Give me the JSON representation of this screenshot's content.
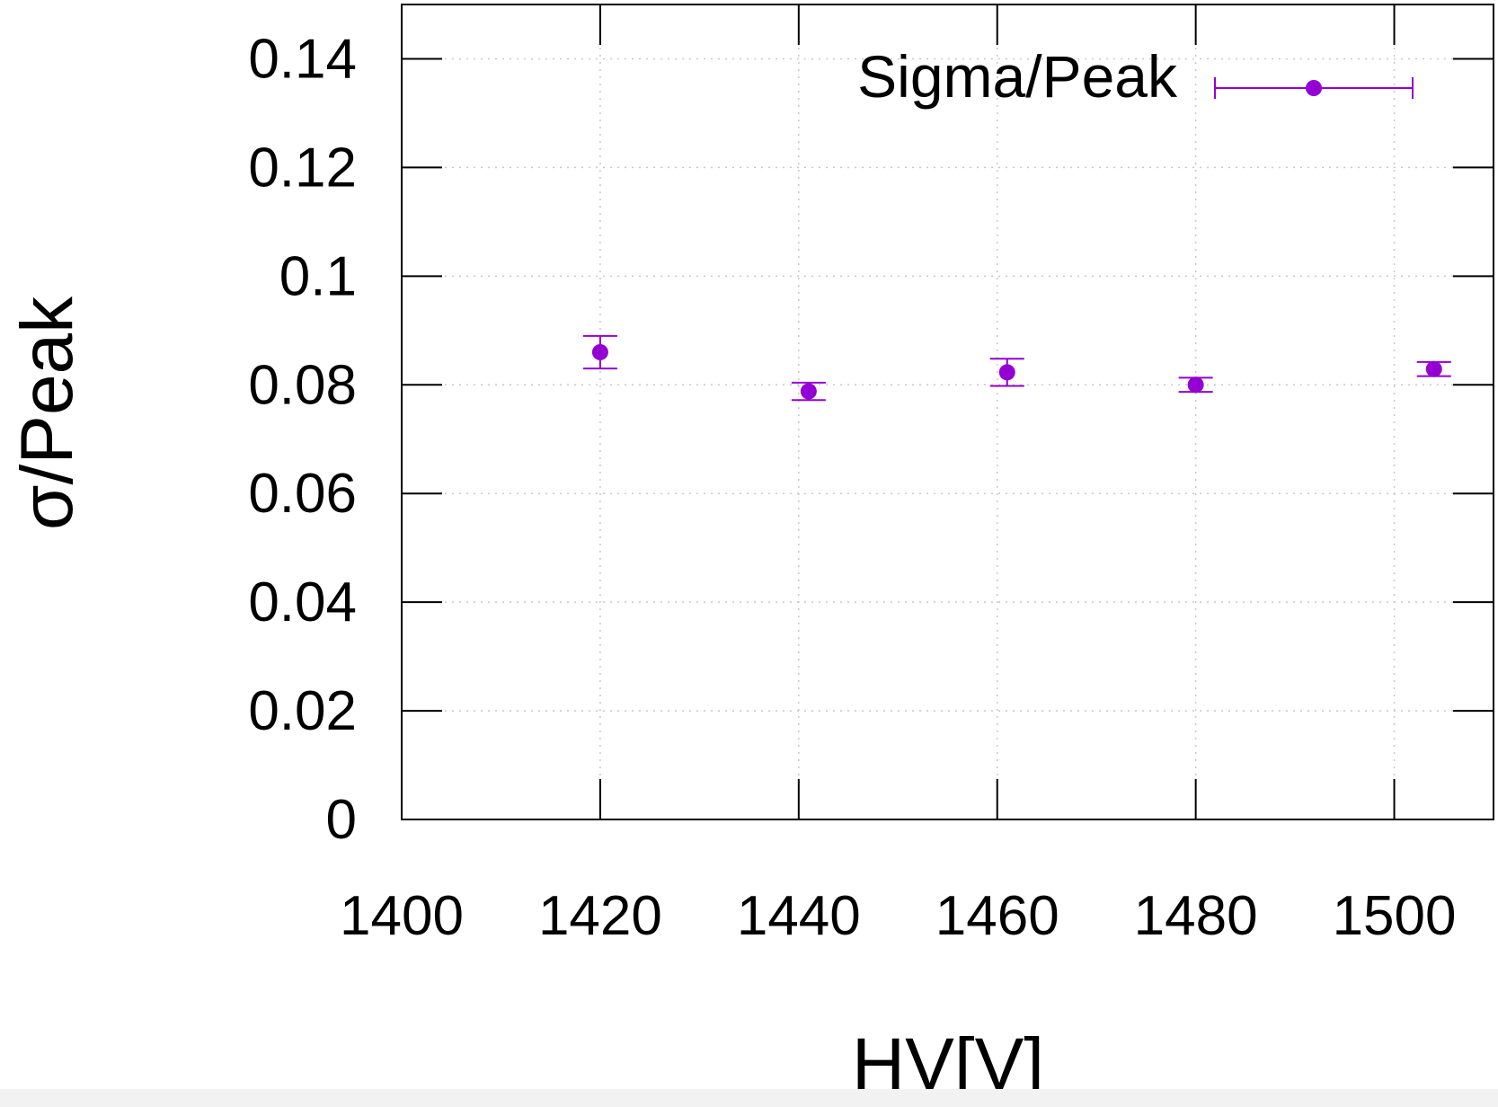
{
  "chart_data": {
    "type": "scatter",
    "title": "",
    "xlabel": "HV[V]",
    "ylabel": "σ/Peak",
    "xlim": [
      1400,
      1510
    ],
    "ylim": [
      0,
      0.15
    ],
    "x_ticks": [
      1400,
      1420,
      1440,
      1460,
      1480,
      1500
    ],
    "x_tick_labels": [
      "1400",
      "1420",
      "1440",
      "1460",
      "1480",
      "1500"
    ],
    "y_ticks": [
      0,
      0.02,
      0.04,
      0.06,
      0.08,
      0.1,
      0.12,
      0.14
    ],
    "y_tick_labels": [
      "0",
      "0.02",
      "0.04",
      "0.06",
      "0.08",
      "0.1",
      "0.12",
      "0.14"
    ],
    "grid": true,
    "legend_position": "top-right",
    "series": [
      {
        "name": "Sigma/Peak",
        "color": "#9400d3",
        "x": [
          1420,
          1441,
          1461,
          1480,
          1504
        ],
        "y": [
          0.086,
          0.0788,
          0.0823,
          0.08,
          0.0829
        ],
        "y_error": [
          0.003,
          0.0016,
          0.0025,
          0.0013,
          0.0013
        ]
      }
    ]
  }
}
